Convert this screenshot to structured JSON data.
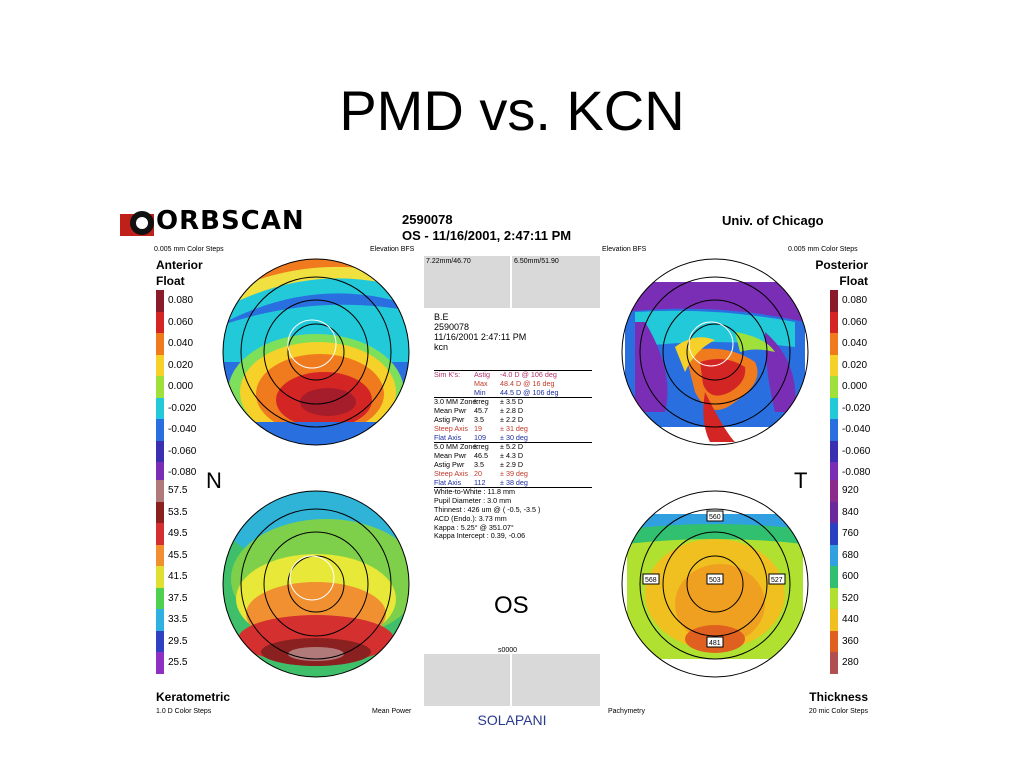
{
  "slide": {
    "title": "PMD vs. KCN",
    "footer": "SOLAPANI"
  },
  "header": {
    "logo": "ORBSCAN",
    "patient_id": "2590078",
    "exam": "OS - 11/16/2001, 2:47:11 PM",
    "institution": "Univ. of Chicago"
  },
  "maps": {
    "anterior": {
      "title1": "Anterior",
      "title2": "Float",
      "steps": "0.005 mm Color Steps",
      "ref": "Elevation BFS"
    },
    "posterior": {
      "title1": "Posterior",
      "title2": "Float",
      "steps": "0.005 mm Color Steps",
      "ref": "Elevation BFS"
    },
    "keratometric": {
      "title": "Keratometric",
      "steps": "1.0 D Color Steps",
      "ref": "Mean Power"
    },
    "thickness": {
      "title": "Thickness",
      "steps": "20 mic Color Steps",
      "ref": "Pachymetry"
    },
    "nasal": "N",
    "temporal": "T",
    "thickness_values": [
      "560",
      "568",
      "503",
      "527",
      "481"
    ]
  },
  "bfs": {
    "left": "7.22mm/46.70",
    "right": "6.50mm/51.90"
  },
  "patient_block": [
    "B.E",
    "2590078",
    "11/16/2001 2:47:11 PM",
    "kcn"
  ],
  "indices": {
    "simk": [
      [
        "Sim K's:",
        "Astig",
        "-4.0 D  @ 106 deg"
      ],
      [
        "",
        "Max",
        "48.4 D  @ 16 deg"
      ],
      [
        "",
        "Min",
        "44.5 D  @ 106 deg"
      ]
    ],
    "zone3": [
      [
        "3.0 MM Zone:",
        "Irreg",
        "± 3.5 D"
      ],
      [
        "Mean Pwr",
        "45.7",
        "± 2.8 D"
      ],
      [
        "Astig Pwr",
        "3.5",
        "± 2.2 D"
      ],
      [
        "Steep Axis",
        "19",
        "± 31 deg"
      ],
      [
        "Flat Axis",
        "109",
        "± 30 deg"
      ]
    ],
    "zone5": [
      [
        "5.0 MM Zone:",
        "Irreg",
        "± 5.2 D"
      ],
      [
        "Mean Pwr",
        "46.5",
        "± 4.3 D"
      ],
      [
        "Astig Pwr",
        "3.5",
        "± 2.9 D"
      ],
      [
        "Steep Axis",
        "20",
        "± 39 deg"
      ],
      [
        "Flat Axis",
        "112",
        "± 38 deg"
      ]
    ],
    "misc": [
      "White-to-White : 11.8 mm",
      "Pupil Diameter : 3.0 mm",
      "Thinnest : 426 um @ ( -0.5, -3.5 )",
      "ACD (Endo.): 3.73 mm",
      "Kappa : 5.25° @ 351.07°",
      "Kappa Intercept : 0.39, -0.06"
    ]
  },
  "eye": "OS",
  "bottom_box_label": "s0000",
  "scales": {
    "left_upper": [
      "0.080",
      "0.060",
      "0.040",
      "0.020",
      "0.000",
      "-0.020",
      "-0.040",
      "-0.060",
      "-0.080"
    ],
    "left_lower": [
      "57.5",
      "53.5",
      "49.5",
      "45.5",
      "41.5",
      "37.5",
      "33.5",
      "29.5",
      "25.5"
    ],
    "right_upper": [
      "0.080",
      "0.060",
      "0.040",
      "0.020",
      "0.000",
      "-0.020",
      "-0.040",
      "-0.060",
      "-0.080"
    ],
    "right_lower": [
      "920",
      "840",
      "760",
      "680",
      "600",
      "520",
      "440",
      "360",
      "280"
    ],
    "colors_elev": [
      "#8b1a2b",
      "#d42525",
      "#f07a1e",
      "#f5d12a",
      "#9fe03a",
      "#22c9d9",
      "#2a6fe0",
      "#3a2fb0",
      "#7a2db5"
    ],
    "colors_kerat": [
      "#b07a7a",
      "#8a2020",
      "#d43030",
      "#f09030",
      "#e0e030",
      "#50d050",
      "#30b0e0",
      "#3040c0",
      "#9030c0"
    ],
    "colors_thick": [
      "#8b2b8b",
      "#6a2a9a",
      "#2a40c0",
      "#30a0e0",
      "#30c070",
      "#b0e030",
      "#f0c020",
      "#e06020",
      "#b05050"
    ]
  }
}
